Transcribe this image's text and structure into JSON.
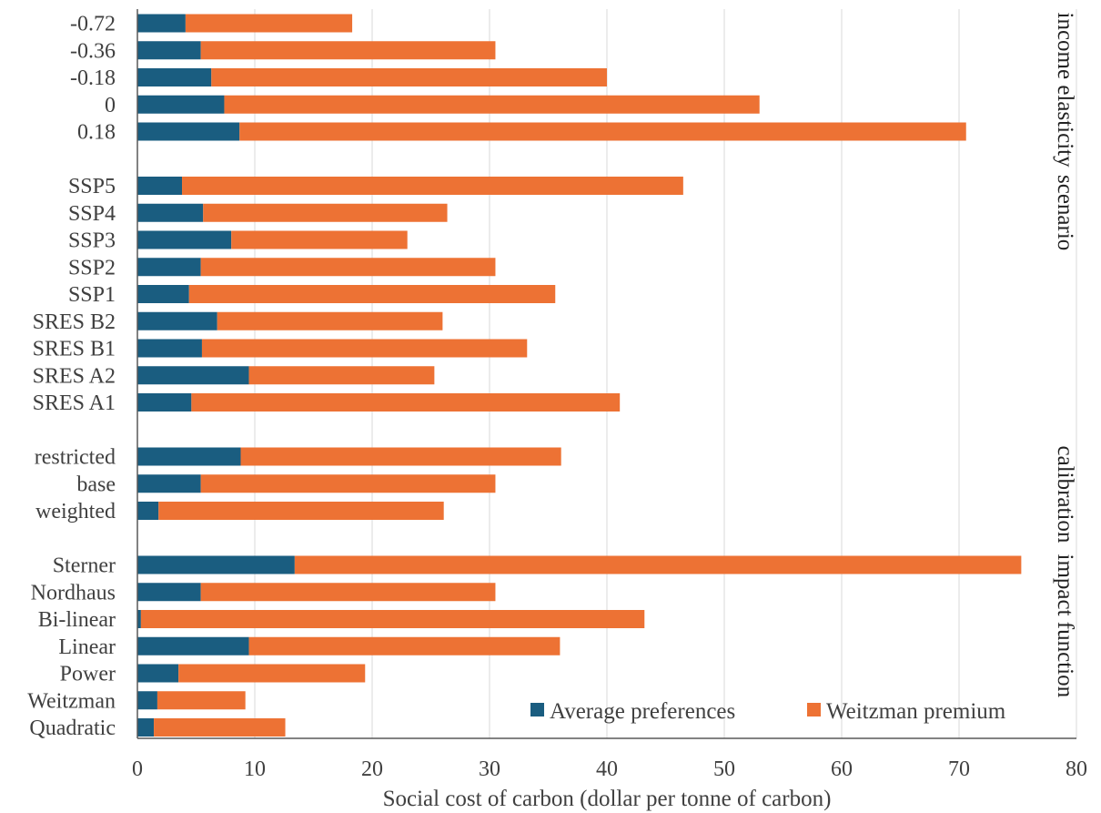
{
  "chart_data": {
    "type": "bar",
    "orientation": "horizontal",
    "stacked": true,
    "xlabel": "Social cost of carbon (dollar per tonne of carbon)",
    "xlim": [
      0,
      80
    ],
    "xticks": [
      0,
      10,
      20,
      30,
      40,
      50,
      60,
      70,
      80
    ],
    "grid": "vertical",
    "legend_position": "bottom-right",
    "colors": {
      "Average preferences": "#1a5d80",
      "Weitzman premium": "#ed7234"
    },
    "groups": [
      {
        "name": "income elasticity",
        "categories": [
          "-0.72",
          "-0.36",
          "-0.18",
          "0",
          "0.18"
        ]
      },
      {
        "name": "scenario",
        "categories": [
          "SSP5",
          "SSP4",
          "SSP3",
          "SSP2",
          "SSP1",
          "SRES B2",
          "SRES B1",
          "SRES A2",
          "SRES A1"
        ]
      },
      {
        "name": "calibration",
        "categories": [
          "restricted",
          "base",
          "weighted"
        ]
      },
      {
        "name": "impact function",
        "categories": [
          "Sterner",
          "Nordhaus",
          "Bi-linear",
          "Linear",
          "Power",
          "Weitzman",
          "Quadratic"
        ]
      }
    ],
    "series": [
      {
        "name": "Average preferences",
        "values": [
          [
            4.1,
            5.4,
            6.3,
            7.4,
            8.7
          ],
          [
            3.8,
            5.6,
            8.0,
            5.4,
            4.4,
            6.8,
            5.5,
            9.5,
            4.6
          ],
          [
            8.8,
            5.4,
            1.8
          ],
          [
            13.4,
            5.4,
            0.3,
            9.5,
            3.5,
            1.7,
            1.4
          ]
        ]
      },
      {
        "name": "Weitzman premium",
        "values": [
          [
            14.2,
            25.1,
            33.7,
            45.6,
            61.9
          ],
          [
            42.7,
            20.8,
            15.0,
            25.1,
            31.2,
            19.2,
            27.7,
            15.8,
            36.5
          ],
          [
            27.3,
            25.1,
            24.3
          ],
          [
            61.9,
            25.1,
            42.9,
            26.5,
            15.9,
            7.5,
            11.2
          ]
        ]
      }
    ]
  }
}
